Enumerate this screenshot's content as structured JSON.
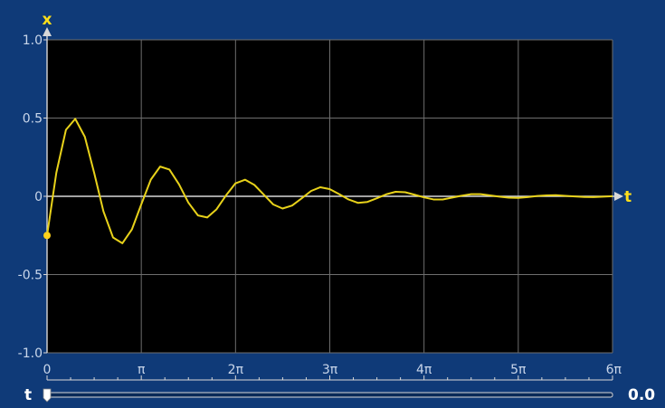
{
  "colors": {
    "background": "#0f3a78",
    "plot_background": "#000000",
    "grid": "#6e6e6e",
    "curve": "#e8d21a",
    "axis_name": "#ffdf1a",
    "tick_label": "#c9d6ea"
  },
  "slider": {
    "label": "t",
    "value_text": "0.0",
    "value": 0.0,
    "range": [
      0,
      18.85
    ]
  },
  "chart_data": {
    "type": "line",
    "title": "",
    "xlabel": "t",
    "ylabel": "x",
    "xlim": [
      0,
      18.85
    ],
    "ylim": [
      -1.0,
      1.0
    ],
    "grid": true,
    "x_ticks": [
      {
        "value": 0,
        "label": "0"
      },
      {
        "value": 3.1416,
        "label": "π"
      },
      {
        "value": 6.2832,
        "label": "2π"
      },
      {
        "value": 9.4248,
        "label": "3π"
      },
      {
        "value": 12.5664,
        "label": "4π"
      },
      {
        "value": 15.708,
        "label": "5π"
      },
      {
        "value": 18.8496,
        "label": "6π"
      }
    ],
    "y_ticks": [
      {
        "value": 1.0,
        "label": "1.0"
      },
      {
        "value": 0.5,
        "label": "0.5"
      },
      {
        "value": 0,
        "label": "0"
      },
      {
        "value": -0.5,
        "label": "-0.5"
      },
      {
        "value": -1.0,
        "label": "-1.0"
      }
    ],
    "series": [
      {
        "x": [
          0.0,
          0.31,
          0.63,
          0.94,
          1.26,
          1.57,
          1.88,
          2.2,
          2.51,
          2.83,
          3.14,
          3.46,
          3.77,
          4.08,
          4.4,
          4.71,
          5.03,
          5.34,
          5.65,
          5.97,
          6.28,
          6.6,
          6.91,
          7.23,
          7.54,
          7.85,
          8.17,
          8.48,
          8.8,
          9.11,
          9.42,
          9.74,
          10.05,
          10.37,
          10.68,
          11.0,
          11.31,
          11.62,
          11.94,
          12.25,
          12.57,
          12.88,
          13.19,
          13.51,
          13.82,
          14.14,
          14.45,
          14.77,
          15.08,
          15.39,
          15.71,
          16.02,
          16.34,
          16.65,
          16.96,
          17.28,
          17.59,
          17.91,
          18.22,
          18.54,
          18.85
        ],
        "y": [
          -0.25,
          0.151,
          0.425,
          0.495,
          0.38,
          0.15,
          -0.096,
          -0.263,
          -0.3,
          -0.211,
          -0.052,
          0.107,
          0.19,
          0.171,
          0.076,
          -0.04,
          -0.122,
          -0.135,
          -0.083,
          0.007,
          0.083,
          0.106,
          0.073,
          0.01,
          -0.052,
          -0.078,
          -0.059,
          -0.014,
          0.034,
          0.058,
          0.046,
          0.014,
          -0.02,
          -0.042,
          -0.036,
          -0.012,
          0.013,
          0.029,
          0.026,
          0.01,
          -0.007,
          -0.02,
          -0.02,
          -0.008,
          0.004,
          0.014,
          0.014,
          0.006,
          -0.002,
          -0.009,
          -0.01,
          -0.005,
          0.002,
          0.006,
          0.007,
          0.003,
          -0.001,
          -0.004,
          -0.005,
          -0.002,
          0.001
        ]
      }
    ]
  }
}
